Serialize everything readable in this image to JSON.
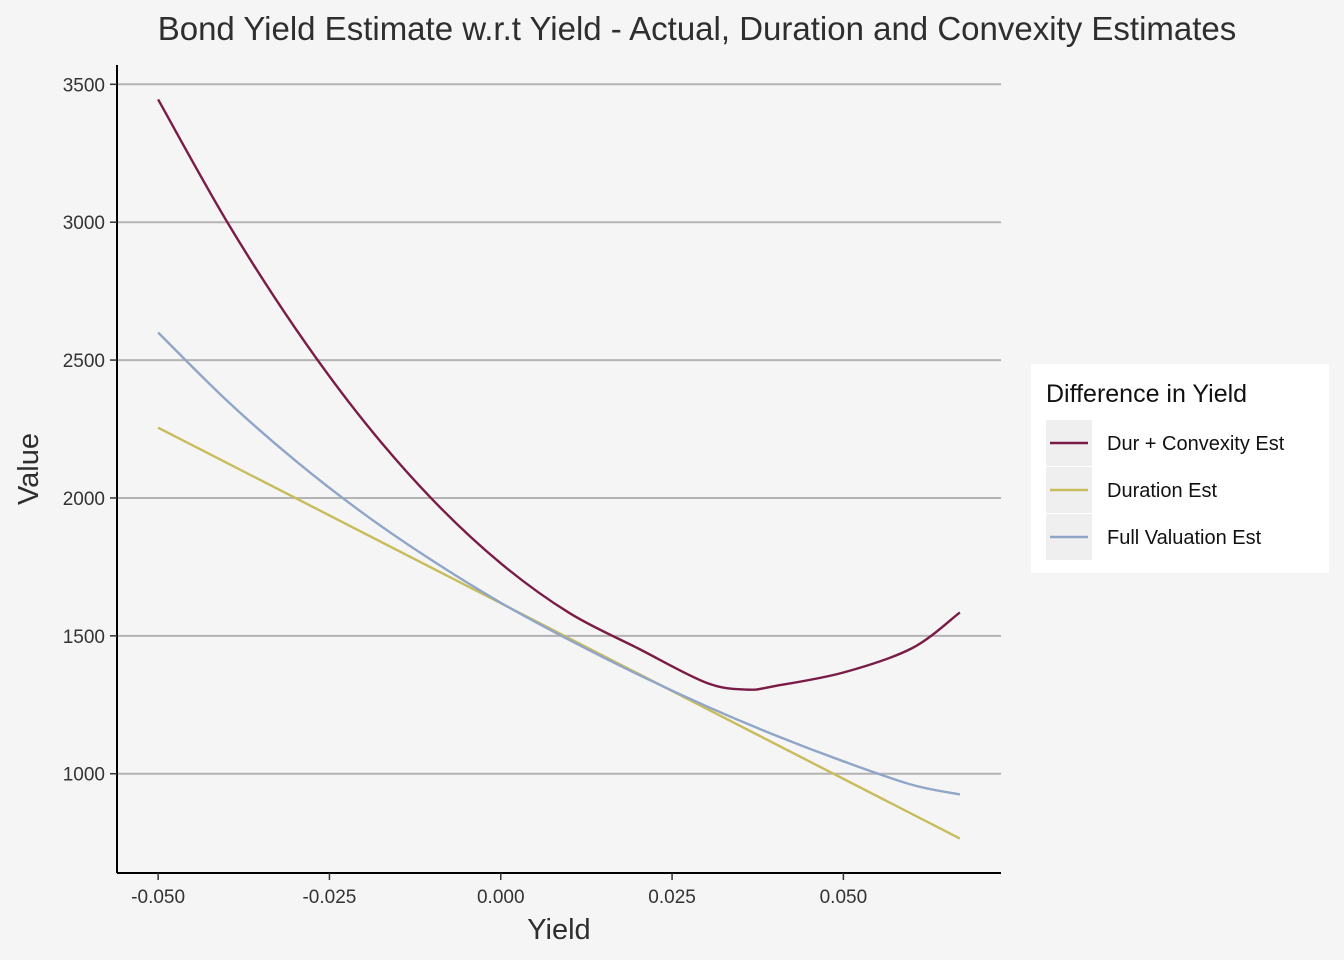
{
  "chart_data": {
    "type": "line",
    "title": "Bond Yield Estimate w.r.t Yield - Actual, Duration and Convexity Estimates",
    "xlabel": "Yield",
    "ylabel": "Value",
    "xlim": [
      -0.056,
      0.073
    ],
    "ylim": [
      640,
      3570
    ],
    "x_ticks": [
      -0.05,
      -0.025,
      0.0,
      0.025,
      0.05
    ],
    "x_tick_labels": [
      "-0.050",
      "-0.025",
      "0.000",
      "0.025",
      "0.050"
    ],
    "y_ticks": [
      1000,
      1500,
      2000,
      2500,
      3000,
      3500
    ],
    "y_tick_labels": [
      "1000",
      "1500",
      "2000",
      "2500",
      "3000",
      "3500"
    ],
    "grid": "horizontal major",
    "legend": {
      "title": "Difference in Yield",
      "placement": "right"
    },
    "series": [
      {
        "name": "Dur + Convexity Est",
        "color": "#7a1c46",
        "x": [
          -0.05,
          -0.04,
          -0.03,
          -0.02,
          -0.01,
          0.0,
          0.01,
          0.02,
          0.03,
          0.036,
          0.04,
          0.05,
          0.06,
          0.067
        ],
        "values": [
          3445,
          3004,
          2616,
          2279,
          1995,
          1763,
          1583,
          1455,
          1330,
          1305,
          1318,
          1367,
          1455,
          1585
        ]
      },
      {
        "name": "Duration Est",
        "color": "#c8bc5c",
        "x": [
          -0.05,
          0.067
        ],
        "values": [
          2255,
          765
        ]
      },
      {
        "name": "Full Valuation Est",
        "color": "#8fa6c8",
        "x": [
          -0.05,
          -0.04,
          -0.03,
          -0.02,
          -0.01,
          0.0,
          0.01,
          0.02,
          0.03,
          0.04,
          0.05,
          0.06,
          0.067
        ],
        "values": [
          2600,
          2354,
          2136,
          1943,
          1773,
          1620,
          1485,
          1360,
          1245,
          1140,
          1045,
          960,
          925
        ]
      }
    ]
  }
}
